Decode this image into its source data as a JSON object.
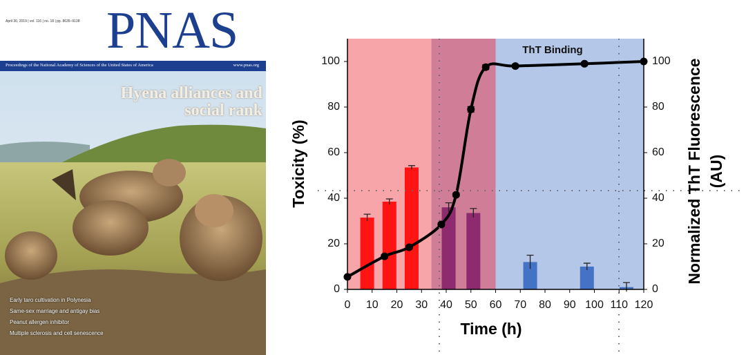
{
  "cover": {
    "issue": "April 30, 2019 | vol. 116 | no. 18 | pp. 8635–9138",
    "journal": "PNAS",
    "fullname": "Proceedings of the National Academy of Sciences of the United States of America",
    "url": "www.pnas.org",
    "headline": "Hyena alliances and social rank",
    "items": [
      "Early taro cultivation in Polynesia",
      "Same-sex marriage and antigay bias",
      "Peanut allergen inhibitor",
      "Multiple sclerosis and cell senescence"
    ]
  },
  "chart_data": {
    "type": "bar",
    "xlabel": "Time (h)",
    "ylabel": "Toxicity (%)",
    "y2label": [
      "Normalized ThT Fluorescence",
      "(AU)"
    ],
    "annotation": "ThT Binding",
    "xlim": [
      0,
      120
    ],
    "xticks": [
      0,
      10,
      20,
      30,
      40,
      50,
      60,
      70,
      80,
      90,
      100,
      110,
      120
    ],
    "ylim": [
      0,
      110
    ],
    "yticks": [
      0,
      20,
      40,
      60,
      80,
      100
    ],
    "y2lim": [
      0,
      110
    ],
    "y2ticks": [
      0,
      20,
      40,
      60,
      80,
      100
    ],
    "regions": [
      {
        "xlim": [
          0,
          34
        ],
        "color": "#f8a5a9"
      },
      {
        "xlim": [
          34,
          60
        ],
        "color": "#d07d97"
      },
      {
        "xlim": [
          60,
          120
        ],
        "color": "#b5c7e9"
      }
    ],
    "bars": {
      "x": [
        8,
        17,
        26,
        41,
        51,
        74,
        97,
        113
      ],
      "values": [
        31.5,
        38.5,
        53.5,
        36,
        33.5,
        12,
        10,
        1
      ],
      "errors": [
        1.5,
        1.2,
        0.8,
        2,
        2,
        3,
        1.5,
        2
      ],
      "colors": [
        "#ff1414",
        "#ff1414",
        "#ff1414",
        "#8e2a6e",
        "#8e2a6e",
        "#4472c4",
        "#4472c4",
        "#4472c4"
      ],
      "width": 5.6
    },
    "line": {
      "axis": "y2",
      "color": "#000000",
      "x": [
        0,
        15,
        25,
        38,
        44,
        50,
        56,
        68,
        96,
        120
      ],
      "values": [
        5.5,
        14.5,
        18.5,
        28.5,
        41.5,
        79,
        97.5,
        98,
        99,
        100
      ],
      "errors": [
        0.5,
        0.8,
        0.6,
        0.8,
        0.8,
        1.2,
        1,
        0.8,
        0.8,
        0.5
      ]
    }
  }
}
